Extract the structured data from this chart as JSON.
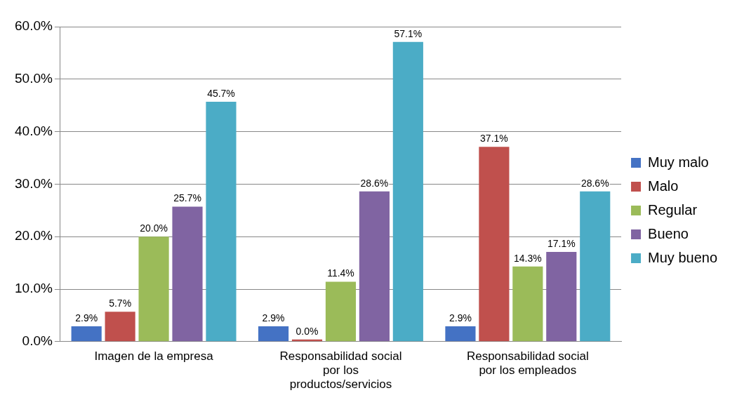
{
  "chart_data": {
    "type": "bar",
    "categories": [
      "Imagen de la empresa",
      "Responsabilidad social por los productos/servicios",
      "Responsabilidad social por los empleados"
    ],
    "series": [
      {
        "name": "Muy malo",
        "color": "#4472c4",
        "values": [
          2.9,
          2.9,
          2.9
        ],
        "value_labels": [
          "2.9%",
          "2.9%",
          "2.9%"
        ]
      },
      {
        "name": "Malo",
        "color": "#c0504d",
        "values": [
          5.7,
          0.0,
          37.1
        ],
        "value_labels": [
          "5.7%",
          "0.0%",
          "37.1%"
        ]
      },
      {
        "name": "Regular",
        "color": "#9bbb59",
        "values": [
          20.0,
          11.4,
          14.3
        ],
        "value_labels": [
          "20.0%",
          "11.4%",
          "14.3%"
        ]
      },
      {
        "name": "Bueno",
        "color": "#8064a2",
        "values": [
          25.7,
          28.6,
          17.1
        ],
        "value_labels": [
          "25.7%",
          "28.6%",
          "17.1%"
        ]
      },
      {
        "name": "Muy bueno",
        "color": "#4bacc6",
        "values": [
          45.7,
          57.1,
          28.6
        ],
        "value_labels": [
          "45.7%",
          "57.1%",
          "28.6%"
        ]
      }
    ],
    "ylim": [
      0,
      60
    ],
    "yticks": [
      {
        "value": 0,
        "label": "0.0%"
      },
      {
        "value": 10,
        "label": "10.0%"
      },
      {
        "value": 20,
        "label": "20.0%"
      },
      {
        "value": 30,
        "label": "30.0%"
      },
      {
        "value": 40,
        "label": "40.0%"
      },
      {
        "value": 50,
        "label": "50.0%"
      },
      {
        "value": 60,
        "label": "60.0%"
      }
    ],
    "grid": "y",
    "legend": "right"
  }
}
